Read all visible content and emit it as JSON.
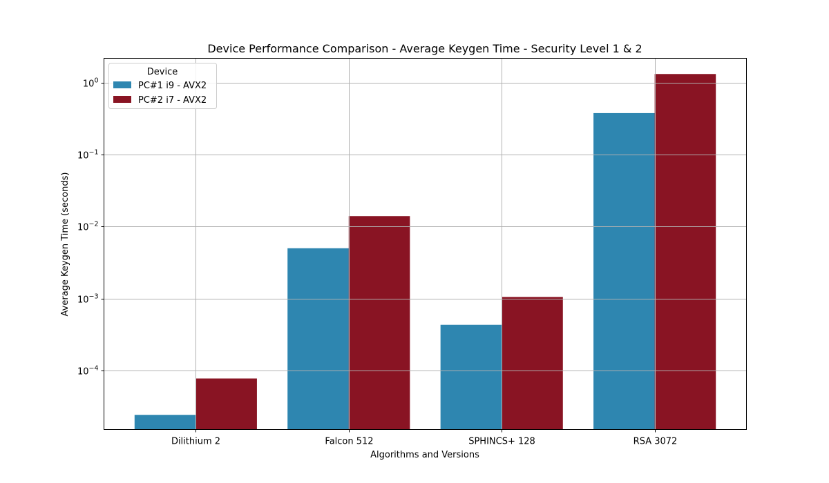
{
  "chart_data": {
    "type": "bar",
    "title": "Device Performance Comparison - Average Keygen Time - Security Level 1 & 2",
    "xlabel": "Algorithms and Versions",
    "ylabel": "Average Keygen Time (seconds)",
    "yscale": "log",
    "ylim": [
      1.5e-05,
      2.2
    ],
    "y_ticks": [
      {
        "value": 0.0001,
        "base": "10",
        "exp": "−4"
      },
      {
        "value": 0.001,
        "base": "10",
        "exp": "−3"
      },
      {
        "value": 0.01,
        "base": "10",
        "exp": "−2"
      },
      {
        "value": 0.1,
        "base": "10",
        "exp": "−1"
      },
      {
        "value": 1,
        "base": "10",
        "exp": "0"
      }
    ],
    "categories": [
      "Dilithium 2",
      "Falcon 512",
      "SPHINCS+ 128",
      "RSA 3072"
    ],
    "series": [
      {
        "name": "PC#1 i9 - AVX2",
        "color": "#2e86b0",
        "values": [
          2.4e-05,
          0.005,
          0.00043,
          0.38
        ]
      },
      {
        "name": "PC#2 i7 - AVX2",
        "color": "#891423",
        "values": [
          7.7e-05,
          0.014,
          0.00105,
          1.33
        ]
      }
    ],
    "legend": {
      "title": "Device",
      "position": "upper-left"
    },
    "grid": true
  }
}
